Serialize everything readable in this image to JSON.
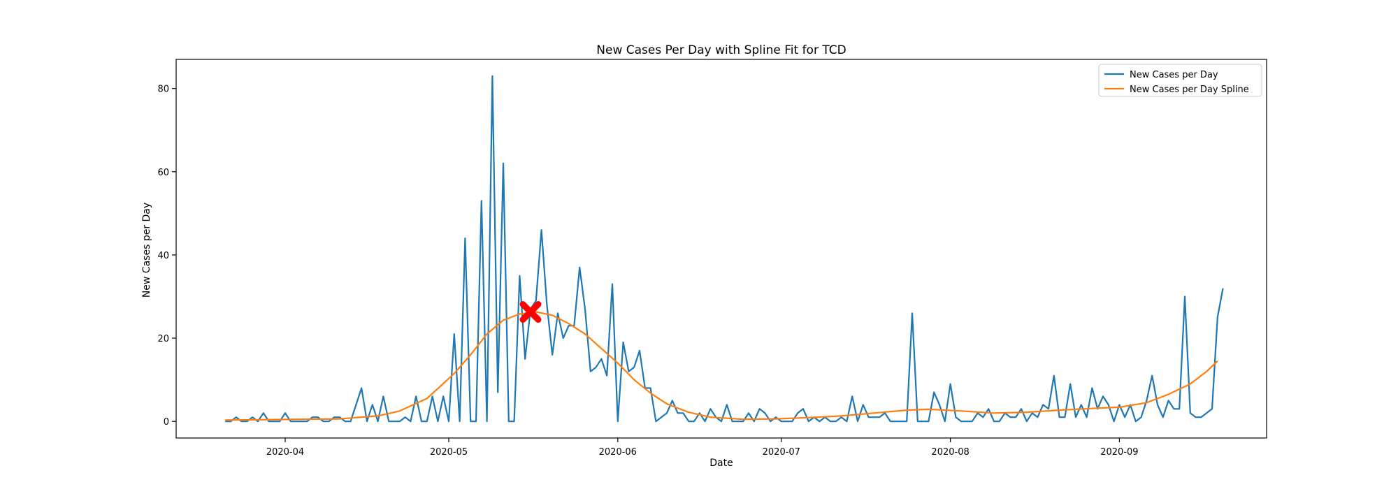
{
  "chart_data": {
    "type": "line",
    "title": "New Cases Per Day with Spline Fit for TCD",
    "xlabel": "Date",
    "ylabel": "New Cases per Day",
    "x_start": "2020-03-21",
    "x_end": "2020-09-19",
    "xlim": [
      "2020-03-12",
      "2020-09-28"
    ],
    "ylim": [
      -4,
      87
    ],
    "x_ticks": [
      "2020-04-01",
      "2020-05-01",
      "2020-06-01",
      "2020-07-01",
      "2020-08-01",
      "2020-09-01"
    ],
    "x_tick_labels": [
      "2020-04",
      "2020-05",
      "2020-06",
      "2020-07",
      "2020-08",
      "2020-09"
    ],
    "y_ticks": [
      0,
      20,
      40,
      60,
      80
    ],
    "y_tick_labels": [
      "0",
      "20",
      "40",
      "60",
      "80"
    ],
    "grid": false,
    "legend_position": "top-right",
    "series": [
      {
        "name": "New Cases per Day",
        "color": "#1f77b4",
        "values": [
          0,
          0,
          1,
          0,
          0,
          1,
          0,
          2,
          0,
          0,
          0,
          2,
          0,
          0,
          0,
          0,
          1,
          1,
          0,
          0,
          1,
          1,
          0,
          0,
          4,
          8,
          0,
          4,
          0,
          6,
          0,
          0,
          0,
          1,
          0,
          6,
          0,
          0,
          6,
          0,
          6,
          0,
          21,
          0,
          44,
          0,
          0,
          53,
          0,
          83,
          7,
          62,
          0,
          0,
          35,
          15,
          27,
          29,
          46,
          28,
          16,
          26,
          20,
          23,
          23,
          37,
          27,
          12,
          13,
          15,
          11,
          33,
          0,
          19,
          12,
          13,
          17,
          8,
          8,
          0,
          1,
          2,
          5,
          2,
          2,
          0,
          0,
          2,
          0,
          3,
          1,
          0,
          4,
          0,
          0,
          0,
          2,
          0,
          3,
          2,
          0,
          1,
          0,
          0,
          0,
          2,
          3,
          0,
          1,
          0,
          1,
          0,
          0,
          1,
          0,
          6,
          0,
          4,
          1,
          1,
          1,
          2,
          0,
          0,
          0,
          0,
          26,
          0,
          0,
          0,
          7,
          4,
          0,
          9,
          1,
          0,
          0,
          0,
          2,
          1,
          3,
          0,
          0,
          2,
          1,
          1,
          3,
          0,
          2,
          1,
          4,
          3,
          11,
          1,
          1,
          9,
          1,
          4,
          1,
          8,
          3,
          6,
          4,
          0,
          4,
          1,
          4,
          0,
          1,
          5,
          11,
          4,
          1,
          5,
          3,
          3,
          30,
          2,
          1,
          1,
          2,
          3,
          25,
          32
        ]
      },
      {
        "name": "New Cases per Day Spline",
        "color": "#ff7f0e",
        "points": [
          [
            "2020-03-21",
            0.3
          ],
          [
            "2020-03-28",
            0.4
          ],
          [
            "2020-04-04",
            0.5
          ],
          [
            "2020-04-11",
            0.6
          ],
          [
            "2020-04-18",
            1.3
          ],
          [
            "2020-04-22",
            2.5
          ],
          [
            "2020-04-27",
            5.5
          ],
          [
            "2020-05-02",
            11.5
          ],
          [
            "2020-05-05",
            16
          ],
          [
            "2020-05-08",
            21
          ],
          [
            "2020-05-11",
            24.3
          ],
          [
            "2020-05-14",
            25.8
          ],
          [
            "2020-05-17",
            26.3
          ],
          [
            "2020-05-20",
            25.5
          ],
          [
            "2020-05-23",
            23.5
          ],
          [
            "2020-05-26",
            21
          ],
          [
            "2020-05-29",
            17.5
          ],
          [
            "2020-06-01",
            14
          ],
          [
            "2020-06-04",
            10
          ],
          [
            "2020-06-07",
            6.8
          ],
          [
            "2020-06-10",
            4.2
          ],
          [
            "2020-06-14",
            2.2
          ],
          [
            "2020-06-18",
            1
          ],
          [
            "2020-06-24",
            0.5
          ],
          [
            "2020-06-30",
            0.6
          ],
          [
            "2020-07-06",
            0.9
          ],
          [
            "2020-07-12",
            1.3
          ],
          [
            "2020-07-18",
            2
          ],
          [
            "2020-07-24",
            2.7
          ],
          [
            "2020-07-28",
            2.9
          ],
          [
            "2020-08-03",
            2.5
          ],
          [
            "2020-08-09",
            2
          ],
          [
            "2020-08-15",
            2.2
          ],
          [
            "2020-08-21",
            2.7
          ],
          [
            "2020-08-27",
            3.1
          ],
          [
            "2020-09-01",
            3.4
          ],
          [
            "2020-09-06",
            4.5
          ],
          [
            "2020-09-10",
            6.5
          ],
          [
            "2020-09-14",
            9
          ],
          [
            "2020-09-17",
            12
          ],
          [
            "2020-09-19",
            14.5
          ]
        ]
      }
    ],
    "marker": {
      "x": "2020-05-16",
      "y": 26.3,
      "color": "#ff0000",
      "shape": "x"
    }
  }
}
